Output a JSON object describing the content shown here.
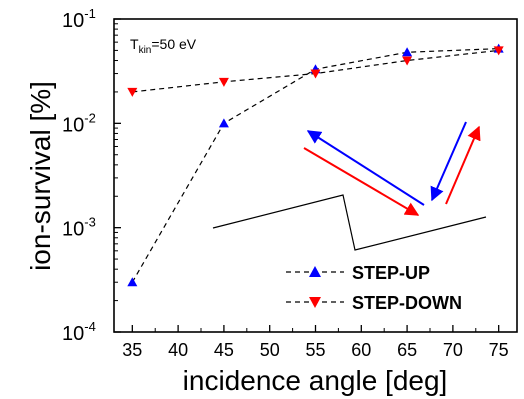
{
  "chart_data": {
    "type": "scatter",
    "xlabel": "incidence angle [deg]",
    "ylabel": "ion-survival [%]",
    "scale_y": "log",
    "xlim": [
      33,
      77
    ],
    "ylim": [
      0.0001,
      0.1
    ],
    "x_ticks": [
      "35",
      "40",
      "45",
      "50",
      "55",
      "60",
      "65",
      "70",
      "75"
    ],
    "y_ticks": [
      {
        "base": "10",
        "exp": "-4"
      },
      {
        "base": "10",
        "exp": "-3"
      },
      {
        "base": "10",
        "exp": "-2"
      },
      {
        "base": "10",
        "exp": "-1"
      }
    ],
    "grid": false,
    "legend_position": "bottom-right",
    "annotation": {
      "prefix": "T",
      "subscript": "kin",
      "suffix": "=50 eV"
    },
    "series": [
      {
        "name": "STEP-UP",
        "color": "#0000ff",
        "marker": "triangle-up",
        "line": "dashed-black",
        "x": [
          35,
          45,
          55,
          65,
          75
        ],
        "y": [
          0.0003,
          0.01,
          0.033,
          0.048,
          0.052
        ]
      },
      {
        "name": "STEP-DOWN",
        "color": "#ff0000",
        "marker": "triangle-down",
        "line": "dashed-black",
        "x": [
          35,
          45,
          55,
          65,
          75
        ],
        "y": [
          0.02,
          0.025,
          0.03,
          0.04,
          0.05
        ]
      }
    ],
    "inset_colors": {
      "step_up_arrows": "#0000ff",
      "step_down_arrows": "#ff0000",
      "surface": "#000000"
    }
  }
}
